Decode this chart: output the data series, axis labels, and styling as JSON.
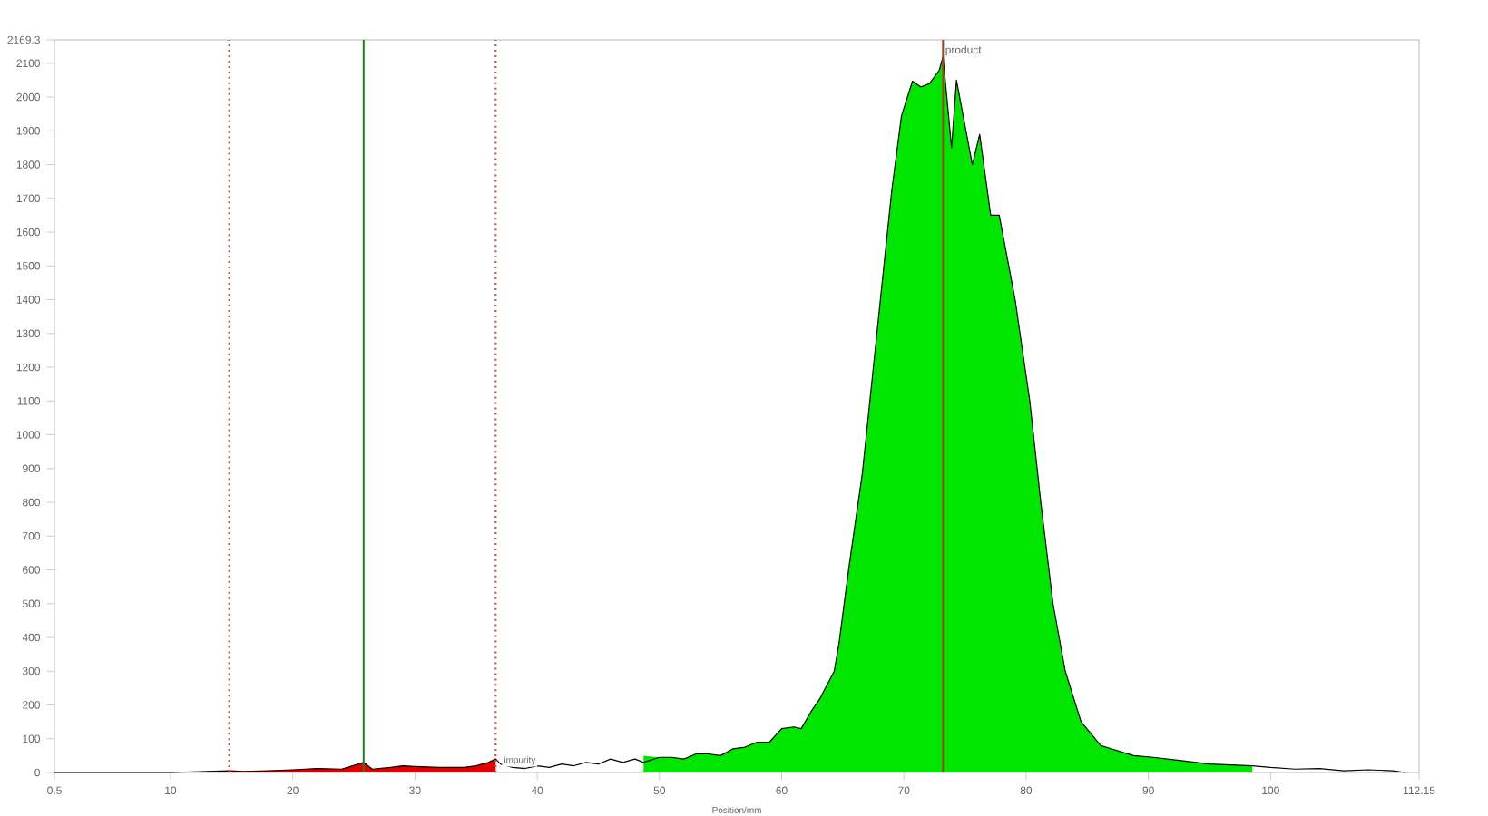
{
  "chart_data": {
    "type": "line",
    "xlabel": "Position/mm",
    "xlim": [
      0.5,
      112.15
    ],
    "ylim": [
      0,
      2169.3
    ],
    "xticks": [
      0.5,
      10,
      20,
      30,
      40,
      50,
      60,
      70,
      80,
      90,
      100,
      112.15
    ],
    "yticks": [
      0,
      100,
      200,
      300,
      400,
      500,
      600,
      700,
      800,
      900,
      1000,
      1100,
      1200,
      1300,
      1400,
      1500,
      1600,
      1700,
      1800,
      1900,
      2000,
      2100,
      2169.3
    ],
    "series": [
      {
        "type": "area",
        "color": "#e00000",
        "x": [
          14.8,
          16,
          18,
          20,
          22,
          24,
          25.8,
          26.5,
          28,
          29,
          30,
          32,
          34,
          35,
          36,
          36.6
        ],
        "values": [
          5,
          3,
          5,
          8,
          12,
          10,
          30,
          10,
          15,
          20,
          18,
          15,
          15,
          20,
          30,
          40
        ]
      },
      {
        "type": "area",
        "color": "#00e600",
        "x": [
          48.7,
          50,
          51,
          52,
          53,
          54,
          55,
          56,
          57,
          58,
          59,
          60,
          61,
          61.6,
          62.4,
          63.1,
          64.3,
          64.7,
          65.5,
          66.6,
          67.4,
          68.2,
          69.0,
          69.8,
          70.7,
          71.4,
          72.1,
          72.9,
          73.2,
          73.9,
          74.3,
          75.6,
          76.2,
          77.1,
          77.8,
          79.1,
          80.3,
          81.2,
          82.2,
          83.2,
          84.5,
          86.1,
          88.8,
          90.4,
          92.7,
          95.0,
          98.5
        ],
        "values": [
          50,
          45,
          45,
          40,
          55,
          55,
          50,
          70,
          75,
          90,
          90,
          130,
          135,
          130,
          180,
          217,
          300,
          385,
          607,
          886,
          1164,
          1443,
          1721,
          1944,
          2047,
          2030,
          2040,
          2080,
          2120,
          1850,
          2050,
          1800,
          1890,
          1650,
          1650,
          1400,
          1100,
          800,
          500,
          300,
          150,
          80,
          50,
          45,
          35,
          25,
          20
        ]
      },
      {
        "color": "#000000",
        "x": [
          0.5,
          5,
          10,
          14.8,
          16,
          18,
          20,
          22,
          24,
          25.8,
          26.5,
          28,
          29,
          30,
          32,
          34,
          35,
          36,
          36.6,
          37,
          38,
          39,
          40,
          41,
          42,
          43,
          44,
          45,
          46,
          47,
          48,
          48.7,
          50,
          51,
          52,
          53,
          54,
          55,
          56,
          57,
          58,
          59,
          60,
          61,
          61.6,
          62.4,
          63.1,
          64.3,
          64.7,
          65.5,
          66.6,
          67.4,
          68.2,
          69.0,
          69.8,
          70.7,
          71.4,
          72.1,
          72.9,
          73.2,
          73.9,
          74.3,
          75.6,
          76.2,
          77.1,
          77.8,
          79.1,
          80.3,
          81.2,
          82.2,
          83.2,
          84.5,
          86.1,
          88.8,
          90.4,
          92.7,
          95.0,
          98.5,
          100,
          102,
          104,
          106,
          108,
          110,
          111
        ],
        "values": [
          0,
          0,
          0,
          5,
          3,
          5,
          8,
          12,
          10,
          30,
          10,
          15,
          20,
          18,
          15,
          15,
          20,
          30,
          40,
          25,
          15,
          12,
          20,
          15,
          25,
          20,
          30,
          25,
          40,
          30,
          40,
          30,
          45,
          45,
          40,
          55,
          55,
          50,
          70,
          75,
          90,
          90,
          130,
          135,
          130,
          180,
          217,
          300,
          385,
          607,
          886,
          1164,
          1443,
          1721,
          1944,
          2047,
          2030,
          2040,
          2080,
          2120,
          1850,
          2050,
          1800,
          1890,
          1650,
          1650,
          1400,
          1100,
          800,
          500,
          300,
          150,
          80,
          50,
          45,
          35,
          25,
          20,
          15,
          10,
          12,
          5,
          8,
          5,
          0
        ]
      }
    ],
    "ref_lines": [
      {
        "axis": "x",
        "value": 14.8,
        "color": "#e04040",
        "line_style": "dotted"
      },
      {
        "axis": "x",
        "value": 25.8,
        "color": "#208020",
        "line_style": "solid"
      },
      {
        "axis": "x",
        "value": 36.6,
        "color": "#e04040",
        "line_style": "dotted"
      },
      {
        "axis": "x",
        "value": 73.2,
        "color": "#a04020",
        "line_style": "solid",
        "label": "product"
      }
    ],
    "annotations": [
      {
        "text": "impurity",
        "x": 36.8,
        "y": 0
      }
    ]
  }
}
